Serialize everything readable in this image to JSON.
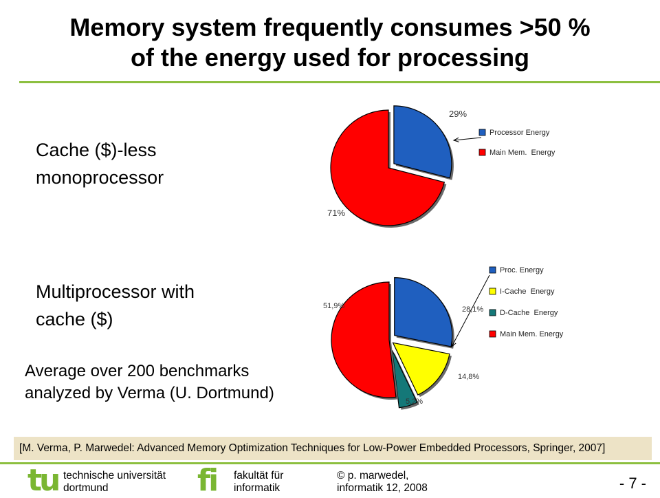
{
  "slide": {
    "title_line1": "Memory system frequently consumes >50 %",
    "title_line2": "of the energy used for processing",
    "case1_line1": "Cache ($)-less",
    "case1_line2": "monoprocessor",
    "case2_line1": "Multiprocessor with",
    "case2_line2": "cache ($)",
    "avg_line1": "Average over 200 benchmarks",
    "avg_line2": "analyzed by Verma (U. Dortmund)",
    "citation": "[M. Verma, P. Marwedel: Advanced Memory Optimization Techniques for Low-Power  Embedded Processors, Springer, 2007]"
  },
  "footer": {
    "logo_tu": "tu",
    "uni_line1": "technische universität",
    "uni_line2": "dortmund",
    "logo_fi": "fi",
    "fak_line1": "fakultät für",
    "fak_line2": "informatik",
    "author_line1": "© p. marwedel,",
    "author_line2": "informatik 12,  2008",
    "page_number": "- 7 -"
  },
  "colors": {
    "accent_green": "#8cbf3f",
    "blue": "#1f5fbf",
    "red": "#ff0000",
    "yellow": "#ffff00",
    "teal": "#147878"
  },
  "chart_data": [
    {
      "type": "pie",
      "slices": [
        {
          "label": "Processor Energy",
          "value": 29,
          "display": "29%",
          "color": "#1f5fbf",
          "exploded": true
        },
        {
          "label": "Main Mem.  Energy",
          "value": 71,
          "display": "71%",
          "color": "#ff0000",
          "exploded": false
        }
      ],
      "legend": "right"
    },
    {
      "type": "pie",
      "slices": [
        {
          "label": "Proc. Energy",
          "value": 28.1,
          "display": "28,1%",
          "color": "#1f5fbf"
        },
        {
          "label": "I-Cache  Energy",
          "value": 14.8,
          "display": "14,8%",
          "color": "#ffff00"
        },
        {
          "label": "D-Cache  Energy",
          "value": 5.2,
          "display": "5,2%",
          "color": "#147878"
        },
        {
          "label": "Main Mem. Energy",
          "value": 51.9,
          "display": "51,9%",
          "color": "#ff0000"
        }
      ],
      "legend": "right"
    }
  ]
}
